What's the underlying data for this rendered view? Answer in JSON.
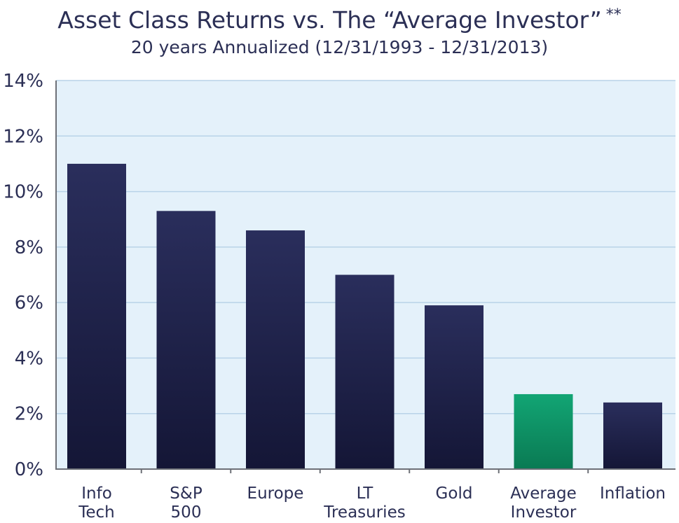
{
  "chart_data": {
    "type": "bar",
    "title": "Asset Class Returns vs. The “Average Investor”",
    "title_marker": "**",
    "subtitle": "20 years Annualized (12/31/1993 - 12/31/2013)",
    "xlabel": "",
    "ylabel": "",
    "ylim": [
      0,
      14
    ],
    "yticks": [
      0,
      2,
      4,
      6,
      8,
      10,
      12,
      14
    ],
    "ytick_labels": [
      "0%",
      "2%",
      "4%",
      "6%",
      "8%",
      "10%",
      "12%",
      "14%"
    ],
    "grid": true,
    "legend": "none",
    "categories": [
      [
        "Info",
        "Tech"
      ],
      [
        "S&P",
        "500"
      ],
      [
        "Europe"
      ],
      [
        "LT",
        "Treasuries"
      ],
      [
        "Gold"
      ],
      [
        "Average",
        "Investor"
      ],
      [
        "Inflation"
      ]
    ],
    "values": [
      11.0,
      9.3,
      8.6,
      7.0,
      5.9,
      2.7,
      2.4
    ],
    "highlight_index": 5,
    "colors": {
      "bar": "#22254f",
      "bar_dark": "#141636",
      "highlight": "#0fa070",
      "highlight_dark": "#0a7a53",
      "plot_bg": "#e4f1fa",
      "grid": "#b9d3e8",
      "axis": "#6d7077",
      "text": "#2b2f55"
    }
  }
}
